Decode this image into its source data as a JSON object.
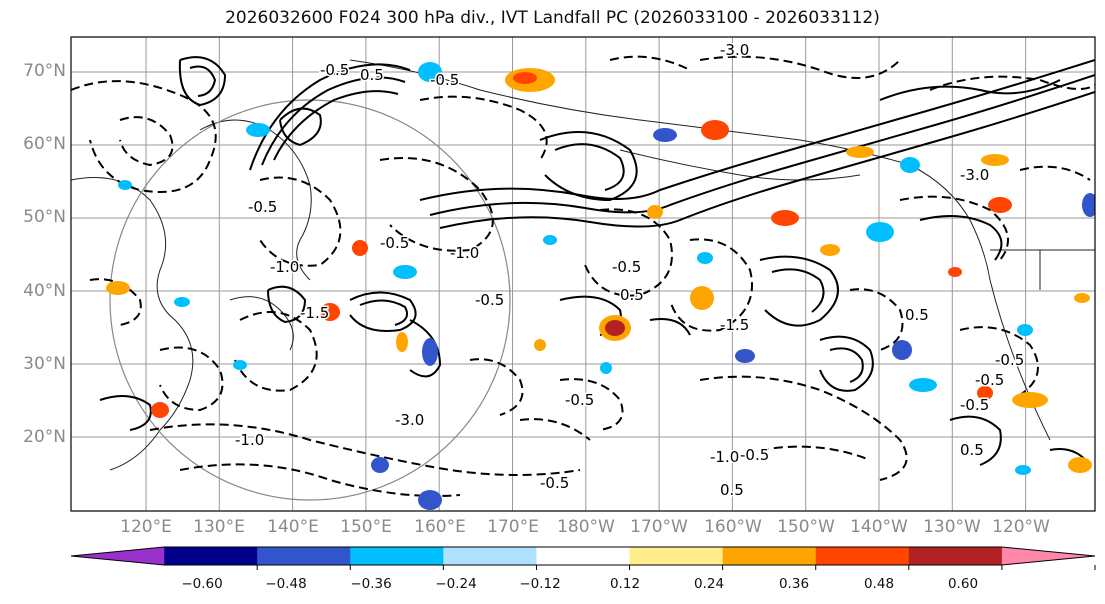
{
  "title": "2026032600 F024 300 hPa div., IVT Landfall PC (2026033100 - 2026033112)",
  "map": {
    "lat_labels": [
      "70°N",
      "60°N",
      "50°N",
      "40°N",
      "30°N",
      "20°N"
    ],
    "lon_labels": [
      "120°E",
      "130°E",
      "140°E",
      "150°E",
      "160°E",
      "170°E",
      "180°W",
      "170°W",
      "160°W",
      "150°W",
      "140°W",
      "130°W",
      "120°W"
    ],
    "contour_labels": [
      "-0.5",
      "-1.0",
      "-1.5",
      "-3.0",
      "-0.5",
      "-1.0",
      "-0.5",
      "0.5",
      "-0.5",
      "-3.0",
      "-1.0",
      "-0.5",
      "0.5",
      "-0.5",
      "-0.5",
      "-1.0",
      "-0.5",
      "0.5",
      "-0.5",
      "-0.5",
      "-3.0",
      "-0.5",
      "0.5",
      "-0.5",
      "-1.5",
      "0.5"
    ]
  },
  "colorbar": {
    "colors": [
      "#9932cc",
      "#00008b",
      "#3355cc",
      "#00bfff",
      "#b0e2ff",
      "#ffffff",
      "#ffec8b",
      "#ffa500",
      "#ff4500",
      "#b22222",
      "#ff88aa"
    ],
    "under_color": "#9932cc",
    "over_color": "#ff88aa",
    "tick_labels": [
      "−0.60",
      "−0.48",
      "−0.36",
      "−0.24",
      "−0.12",
      "0.12",
      "0.24",
      "0.36",
      "0.48",
      "0.60"
    ]
  }
}
